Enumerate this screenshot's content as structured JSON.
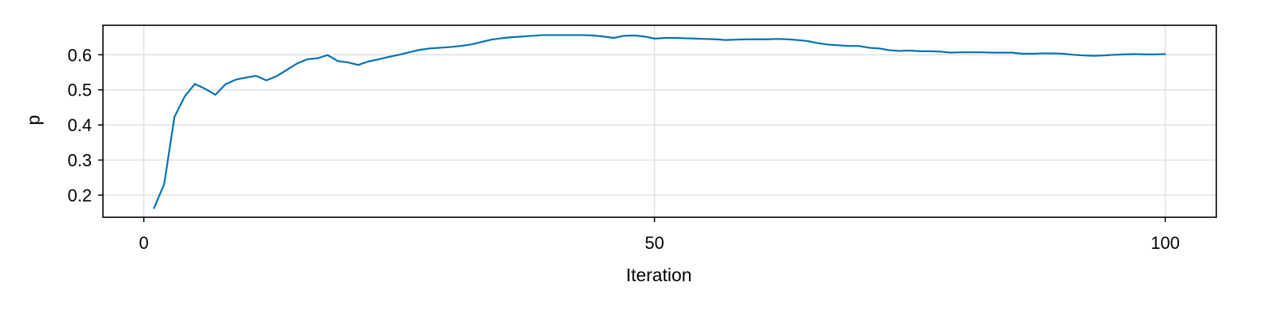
{
  "chart_data": {
    "type": "line",
    "xlabel": "Iteration",
    "ylabel": "p",
    "xlim": [
      -4,
      105
    ],
    "ylim": [
      0.137,
      0.684
    ],
    "xticks": [
      0,
      50,
      100
    ],
    "xtick_labels": [
      "0",
      "50",
      "100"
    ],
    "yticks": [
      0.2,
      0.3,
      0.4,
      0.5,
      0.6
    ],
    "ytick_labels": [
      "0.2",
      "0.3",
      "0.4",
      "0.5",
      "0.6"
    ],
    "grid": true,
    "legend": "none",
    "series": [
      {
        "color": "#0072b2",
        "x": [
          1,
          2,
          3,
          4,
          5,
          6,
          7,
          8,
          9,
          10,
          11,
          12,
          13,
          14,
          15,
          16,
          17,
          18,
          19,
          20,
          21,
          22,
          23,
          24,
          25,
          26,
          27,
          28,
          29,
          30,
          31,
          32,
          33,
          34,
          35,
          36,
          37,
          38,
          39,
          40,
          41,
          42,
          43,
          44,
          45,
          46,
          47,
          48,
          49,
          50,
          51,
          52,
          53,
          54,
          55,
          56,
          57,
          58,
          59,
          60,
          61,
          62,
          63,
          64,
          65,
          66,
          67,
          68,
          69,
          70,
          71,
          72,
          73,
          74,
          75,
          76,
          77,
          78,
          79,
          80,
          81,
          82,
          83,
          84,
          85,
          86,
          87,
          88,
          89,
          90,
          91,
          92,
          93,
          94,
          95,
          96,
          97,
          98,
          99,
          100
        ],
        "values": [
          0.163,
          0.232,
          0.423,
          0.481,
          0.517,
          0.503,
          0.486,
          0.516,
          0.529,
          0.535,
          0.54,
          0.527,
          0.539,
          0.557,
          0.575,
          0.587,
          0.59,
          0.599,
          0.582,
          0.578,
          0.571,
          0.581,
          0.587,
          0.594,
          0.6,
          0.607,
          0.614,
          0.618,
          0.62,
          0.622,
          0.625,
          0.629,
          0.636,
          0.643,
          0.647,
          0.65,
          0.652,
          0.654,
          0.656,
          0.656,
          0.656,
          0.656,
          0.656,
          0.655,
          0.652,
          0.648,
          0.654,
          0.655,
          0.652,
          0.646,
          0.648,
          0.648,
          0.647,
          0.646,
          0.645,
          0.644,
          0.642,
          0.643,
          0.644,
          0.644,
          0.644,
          0.645,
          0.644,
          0.642,
          0.639,
          0.633,
          0.629,
          0.627,
          0.625,
          0.625,
          0.62,
          0.618,
          0.613,
          0.611,
          0.612,
          0.61,
          0.61,
          0.609,
          0.606,
          0.607,
          0.607,
          0.607,
          0.606,
          0.606,
          0.606,
          0.603,
          0.603,
          0.604,
          0.604,
          0.603,
          0.6,
          0.598,
          0.597,
          0.598,
          0.6,
          0.601,
          0.602,
          0.601,
          0.601,
          0.602
        ]
      }
    ]
  }
}
